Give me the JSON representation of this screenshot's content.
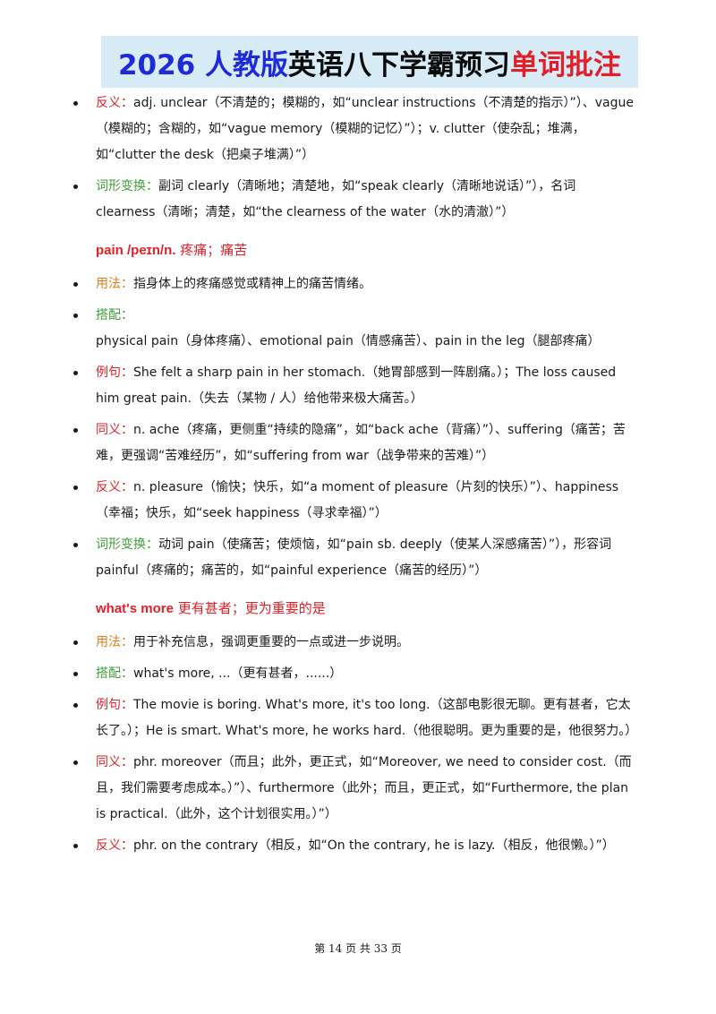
{
  "banner": {
    "part1": "2026 人教版",
    "part2": "英语八下学霸预习",
    "part3": "单词批注"
  },
  "sections": [
    {
      "heading": null,
      "items": [
        {
          "label": "反义：",
          "label_color": "red",
          "text": "adj. unclear（不清楚的；模糊的，如“unclear instructions（不清楚的指示）”）、vague（模糊的；含糊的，如“vague memory（模糊的记忆）”）；v. clutter（使杂乱；堆满，如“clutter the desk（把桌子堆满）”）"
        },
        {
          "label": "词形变换：",
          "label_color": "green",
          "text": "副词 clearly（清晰地；清楚地，如“speak clearly（清晰地说话）”），名词 clearness（清晰；清楚，如“the clearness of the water（水的清澈）”）"
        }
      ]
    },
    {
      "heading": {
        "word": "pain /peɪn/n.",
        "meaning": "疼痛；痛苦"
      },
      "items": [
        {
          "label": "用法：",
          "label_color": "orange",
          "text": "指身体上的疼痛感觉或精神上的痛苦情绪。"
        },
        {
          "label": "搭配：",
          "label_color": "green",
          "text": "physical pain（身体疼痛）、emotional pain（情感痛苦）、pain in the leg（腿部疼痛）"
        },
        {
          "label": "例句：",
          "label_color": "red",
          "text": "She felt a sharp pain in her stomach.（她胃部感到一阵剧痛。）；The loss caused him great pain.（失去（某物 / 人）给他带来极大痛苦。）"
        },
        {
          "label": "同义：",
          "label_color": "red",
          "text": "n. ache（疼痛，更侧重“持续的隐痛”，如“back ache（背痛）”）、suffering（痛苦；苦难，更强调“苦难经历”，如“suffering from war（战争带来的苦难）”）"
        },
        {
          "label": "反义：",
          "label_color": "red",
          "text": "n. pleasure（愉快；快乐，如“a moment of pleasure（片刻的快乐）”）、happiness（幸福；快乐，如“seek happiness（寻求幸福）”）"
        },
        {
          "label": "词形变换：",
          "label_color": "green",
          "text": "动词 pain（使痛苦；使烦恼，如“pain sb. deeply（使某人深感痛苦）”），形容词 painful（疼痛的；痛苦的，如“painful experience（痛苦的经历）”）"
        }
      ]
    },
    {
      "heading": {
        "word": "what's more",
        "meaning": "更有甚者；更为重要的是"
      },
      "items": [
        {
          "label": "用法：",
          "label_color": "orange",
          "text": "用于补充信息，强调更重要的一点或进一步说明。"
        },
        {
          "label": "搭配：",
          "label_color": "green",
          "text": "what's more, ...（更有甚者，......）"
        },
        {
          "label": "例句：",
          "label_color": "red",
          "text": "The movie is boring. What's more, it's too long.（这部电影很无聊。更有甚者，它太长了。）；He is smart. What's more, he works hard.（他很聪明。更为重要的是，他很努力。）"
        },
        {
          "label": "同义：",
          "label_color": "red",
          "text": "phr. moreover（而且；此外，更正式，如“Moreover, we need to consider cost.（而且，我们需要考虑成本。）”）、furthermore（此外；而且，更正式，如“Furthermore, the plan is practical.（此外，这个计划很实用。）”）"
        },
        {
          "label": "反义：",
          "label_color": "red",
          "text": "phr. on the contrary（相反，如“On the contrary, he is lazy.（相反，他很懒。）”）"
        }
      ]
    }
  ],
  "footer": "第 14 页 共 33 页"
}
